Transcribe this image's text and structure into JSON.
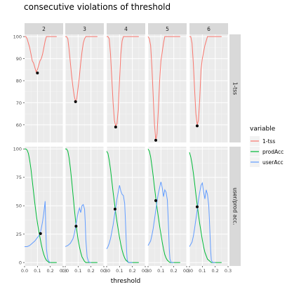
{
  "chart_data": {
    "type": "line",
    "title": "consecutive violations of threshold",
    "xlabel": "threshold",
    "ylabel": "",
    "xlim": [
      0.0,
      0.3
    ],
    "x_ticks": [
      0.0,
      0.1,
      0.2,
      0.3
    ],
    "x_tick_labels": [
      "0.0",
      "0.1",
      "0.2",
      "0.3"
    ],
    "facet_cols": [
      "2",
      "3",
      "4",
      "5",
      "6"
    ],
    "facet_rows": [
      {
        "name": "1-tss",
        "ylim": [
          52,
          101
        ],
        "y_ticks": [
          60,
          70,
          80,
          90,
          100
        ]
      },
      {
        "name": "user/prod acc.",
        "ylim": [
          -3,
          102
        ],
        "y_ticks": [
          0,
          25,
          50,
          75,
          100
        ]
      }
    ],
    "legend": {
      "title": "variable",
      "position": "right",
      "entries": [
        {
          "name": "1-tss",
          "color": "#F8766D"
        },
        {
          "name": "prodAcc",
          "color": "#00BA38"
        },
        {
          "name": "userAcc",
          "color": "#619CFF"
        }
      ]
    },
    "grid": true,
    "panel_background": "#EBEBEB",
    "strip_background": "#D9D9D9",
    "panels": [
      {
        "col": "2",
        "tss": [
          [
            0.0,
            100
          ],
          [
            0.01,
            100
          ],
          [
            0.02,
            99
          ],
          [
            0.03,
            97
          ],
          [
            0.04,
            95
          ],
          [
            0.05,
            92
          ],
          [
            0.06,
            89
          ],
          [
            0.07,
            88
          ],
          [
            0.08,
            86
          ],
          [
            0.09,
            84
          ],
          [
            0.1,
            85
          ],
          [
            0.11,
            87
          ],
          [
            0.12,
            89
          ],
          [
            0.13,
            90
          ],
          [
            0.14,
            92
          ],
          [
            0.15,
            95
          ],
          [
            0.16,
            98
          ],
          [
            0.17,
            100
          ],
          [
            0.18,
            100
          ],
          [
            0.2,
            100
          ],
          [
            0.25,
            100
          ]
        ],
        "tss_point": [
          0.1,
          83.5
        ],
        "prod": [
          [
            0.0,
            100
          ],
          [
            0.01,
            100
          ],
          [
            0.02,
            99
          ],
          [
            0.03,
            96
          ],
          [
            0.04,
            90
          ],
          [
            0.05,
            82
          ],
          [
            0.06,
            72
          ],
          [
            0.07,
            62
          ],
          [
            0.08,
            52
          ],
          [
            0.09,
            43
          ],
          [
            0.1,
            35
          ],
          [
            0.11,
            28
          ],
          [
            0.12,
            22
          ],
          [
            0.13,
            16
          ],
          [
            0.14,
            11
          ],
          [
            0.15,
            7
          ],
          [
            0.16,
            4
          ],
          [
            0.17,
            2
          ],
          [
            0.18,
            1
          ],
          [
            0.19,
            0
          ],
          [
            0.2,
            0
          ],
          [
            0.25,
            0
          ]
        ],
        "user": [
          [
            0.0,
            14
          ],
          [
            0.02,
            14
          ],
          [
            0.04,
            15
          ],
          [
            0.06,
            17
          ],
          [
            0.08,
            19
          ],
          [
            0.1,
            22
          ],
          [
            0.12,
            25
          ],
          [
            0.13,
            30
          ],
          [
            0.14,
            36
          ],
          [
            0.15,
            44
          ],
          [
            0.16,
            54
          ],
          [
            0.165,
            30
          ],
          [
            0.17,
            12
          ],
          [
            0.18,
            3
          ],
          [
            0.19,
            1
          ],
          [
            0.2,
            0
          ]
        ],
        "acc_point": [
          0.124,
          25.5
        ]
      },
      {
        "col": "3",
        "tss": [
          [
            0.0,
            100
          ],
          [
            0.01,
            100
          ],
          [
            0.02,
            99
          ],
          [
            0.03,
            94
          ],
          [
            0.04,
            88
          ],
          [
            0.05,
            82
          ],
          [
            0.06,
            77
          ],
          [
            0.07,
            73
          ],
          [
            0.08,
            70.5
          ],
          [
            0.09,
            72
          ],
          [
            0.1,
            77
          ],
          [
            0.11,
            82
          ],
          [
            0.12,
            88
          ],
          [
            0.13,
            93
          ],
          [
            0.14,
            97
          ],
          [
            0.15,
            99
          ],
          [
            0.16,
            100
          ],
          [
            0.2,
            100
          ],
          [
            0.25,
            100
          ]
        ],
        "tss_point": [
          0.08,
          70.5
        ],
        "prod": [
          [
            0.0,
            100
          ],
          [
            0.01,
            100
          ],
          [
            0.02,
            98
          ],
          [
            0.03,
            92
          ],
          [
            0.04,
            83
          ],
          [
            0.05,
            72
          ],
          [
            0.06,
            60
          ],
          [
            0.07,
            48
          ],
          [
            0.08,
            37
          ],
          [
            0.09,
            28
          ],
          [
            0.1,
            20
          ],
          [
            0.11,
            14
          ],
          [
            0.12,
            9
          ],
          [
            0.13,
            5
          ],
          [
            0.14,
            3
          ],
          [
            0.15,
            1
          ],
          [
            0.16,
            0
          ],
          [
            0.2,
            0
          ],
          [
            0.25,
            0
          ]
        ],
        "user": [
          [
            0.0,
            14
          ],
          [
            0.02,
            15
          ],
          [
            0.04,
            17
          ],
          [
            0.06,
            21
          ],
          [
            0.07,
            25
          ],
          [
            0.08,
            31
          ],
          [
            0.09,
            38
          ],
          [
            0.1,
            44
          ],
          [
            0.11,
            48
          ],
          [
            0.12,
            44
          ],
          [
            0.13,
            50
          ],
          [
            0.14,
            51
          ],
          [
            0.15,
            47
          ],
          [
            0.155,
            36
          ],
          [
            0.16,
            20
          ],
          [
            0.17,
            5
          ],
          [
            0.18,
            1
          ],
          [
            0.19,
            0
          ],
          [
            0.2,
            0
          ]
        ],
        "acc_point": [
          0.084,
          32
        ]
      },
      {
        "col": "4",
        "tss": [
          [
            0.0,
            100
          ],
          [
            0.01,
            100
          ],
          [
            0.02,
            99
          ],
          [
            0.03,
            92
          ],
          [
            0.04,
            81
          ],
          [
            0.05,
            70
          ],
          [
            0.06,
            62
          ],
          [
            0.07,
            59.5
          ],
          [
            0.08,
            60.5
          ],
          [
            0.09,
            67
          ],
          [
            0.1,
            80
          ],
          [
            0.11,
            92
          ],
          [
            0.12,
            98
          ],
          [
            0.13,
            100
          ],
          [
            0.15,
            100
          ],
          [
            0.2,
            100
          ],
          [
            0.25,
            100
          ]
        ],
        "tss_point": [
          0.07,
          59
        ],
        "prod": [
          [
            0.0,
            98
          ],
          [
            0.01,
            96
          ],
          [
            0.02,
            90
          ],
          [
            0.03,
            82
          ],
          [
            0.04,
            72
          ],
          [
            0.05,
            62
          ],
          [
            0.06,
            53
          ],
          [
            0.07,
            44
          ],
          [
            0.08,
            36
          ],
          [
            0.09,
            29
          ],
          [
            0.1,
            22
          ],
          [
            0.11,
            16
          ],
          [
            0.12,
            11
          ],
          [
            0.13,
            7
          ],
          [
            0.14,
            4
          ],
          [
            0.15,
            2
          ],
          [
            0.16,
            1
          ],
          [
            0.17,
            0
          ],
          [
            0.2,
            0
          ],
          [
            0.25,
            0
          ]
        ],
        "user": [
          [
            0.0,
            12
          ],
          [
            0.01,
            14
          ],
          [
            0.02,
            17
          ],
          [
            0.03,
            21
          ],
          [
            0.04,
            27
          ],
          [
            0.05,
            33
          ],
          [
            0.06,
            41
          ],
          [
            0.07,
            48
          ],
          [
            0.08,
            56
          ],
          [
            0.09,
            62
          ],
          [
            0.1,
            68
          ],
          [
            0.11,
            63
          ],
          [
            0.12,
            60
          ],
          [
            0.13,
            59
          ],
          [
            0.14,
            52
          ],
          [
            0.145,
            40
          ],
          [
            0.15,
            25
          ],
          [
            0.155,
            10
          ],
          [
            0.16,
            2
          ],
          [
            0.17,
            0
          ],
          [
            0.2,
            0
          ]
        ],
        "acc_point": [
          0.065,
          47
        ]
      },
      {
        "col": "5",
        "tss": [
          [
            0.0,
            100
          ],
          [
            0.01,
            99
          ],
          [
            0.02,
            96
          ],
          [
            0.03,
            86
          ],
          [
            0.04,
            73
          ],
          [
            0.05,
            60
          ],
          [
            0.06,
            53
          ],
          [
            0.07,
            56
          ],
          [
            0.08,
            67
          ],
          [
            0.09,
            80
          ],
          [
            0.1,
            89
          ],
          [
            0.11,
            93
          ],
          [
            0.12,
            97
          ],
          [
            0.13,
            100
          ],
          [
            0.15,
            100
          ],
          [
            0.2,
            100
          ],
          [
            0.25,
            100
          ]
        ],
        "tss_point": [
          0.06,
          53
        ],
        "prod": [
          [
            0.0,
            100
          ],
          [
            0.01,
            98
          ],
          [
            0.02,
            93
          ],
          [
            0.03,
            85
          ],
          [
            0.04,
            76
          ],
          [
            0.05,
            66
          ],
          [
            0.06,
            57
          ],
          [
            0.07,
            48
          ],
          [
            0.08,
            40
          ],
          [
            0.09,
            32
          ],
          [
            0.1,
            25
          ],
          [
            0.11,
            18
          ],
          [
            0.12,
            12
          ],
          [
            0.13,
            7
          ],
          [
            0.14,
            4
          ],
          [
            0.15,
            2
          ],
          [
            0.16,
            1
          ],
          [
            0.17,
            0
          ],
          [
            0.2,
            0
          ],
          [
            0.25,
            0
          ]
        ],
        "user": [
          [
            0.0,
            15
          ],
          [
            0.02,
            19
          ],
          [
            0.03,
            24
          ],
          [
            0.04,
            30
          ],
          [
            0.05,
            38
          ],
          [
            0.06,
            46
          ],
          [
            0.07,
            54
          ],
          [
            0.08,
            61
          ],
          [
            0.09,
            66
          ],
          [
            0.1,
            71
          ],
          [
            0.11,
            66
          ],
          [
            0.12,
            58
          ],
          [
            0.13,
            64
          ],
          [
            0.14,
            62
          ],
          [
            0.15,
            55
          ],
          [
            0.155,
            42
          ],
          [
            0.16,
            28
          ],
          [
            0.165,
            12
          ],
          [
            0.17,
            3
          ],
          [
            0.18,
            0
          ],
          [
            0.2,
            0
          ]
        ],
        "acc_point": [
          0.06,
          54.5
        ]
      },
      {
        "col": "6",
        "tss": [
          [
            0.0,
            100
          ],
          [
            0.01,
            100
          ],
          [
            0.02,
            97
          ],
          [
            0.03,
            88
          ],
          [
            0.04,
            76
          ],
          [
            0.05,
            65
          ],
          [
            0.06,
            60
          ],
          [
            0.07,
            62
          ],
          [
            0.08,
            72
          ],
          [
            0.09,
            85
          ],
          [
            0.1,
            90
          ],
          [
            0.11,
            93
          ],
          [
            0.12,
            96
          ],
          [
            0.13,
            98
          ],
          [
            0.14,
            100
          ],
          [
            0.2,
            100
          ],
          [
            0.25,
            100
          ]
        ],
        "tss_point": [
          0.06,
          59.5
        ],
        "prod": [
          [
            0.0,
            97
          ],
          [
            0.01,
            93
          ],
          [
            0.02,
            87
          ],
          [
            0.03,
            79
          ],
          [
            0.04,
            70
          ],
          [
            0.05,
            60
          ],
          [
            0.06,
            51
          ],
          [
            0.07,
            42
          ],
          [
            0.08,
            34
          ],
          [
            0.09,
            27
          ],
          [
            0.1,
            20
          ],
          [
            0.11,
            14
          ],
          [
            0.12,
            9
          ],
          [
            0.13,
            6
          ],
          [
            0.14,
            3
          ],
          [
            0.15,
            2
          ],
          [
            0.16,
            1
          ],
          [
            0.17,
            0
          ],
          [
            0.2,
            0
          ],
          [
            0.25,
            0
          ]
        ],
        "user": [
          [
            0.0,
            14
          ],
          [
            0.02,
            18
          ],
          [
            0.03,
            23
          ],
          [
            0.04,
            30
          ],
          [
            0.05,
            38
          ],
          [
            0.06,
            46
          ],
          [
            0.07,
            55
          ],
          [
            0.08,
            62
          ],
          [
            0.09,
            68
          ],
          [
            0.1,
            70
          ],
          [
            0.11,
            62
          ],
          [
            0.12,
            56
          ],
          [
            0.13,
            64
          ],
          [
            0.14,
            60
          ],
          [
            0.15,
            50
          ],
          [
            0.155,
            38
          ],
          [
            0.16,
            24
          ],
          [
            0.165,
            10
          ],
          [
            0.17,
            2
          ],
          [
            0.18,
            0
          ],
          [
            0.2,
            0
          ]
        ],
        "acc_point": [
          0.06,
          49
        ]
      }
    ]
  }
}
